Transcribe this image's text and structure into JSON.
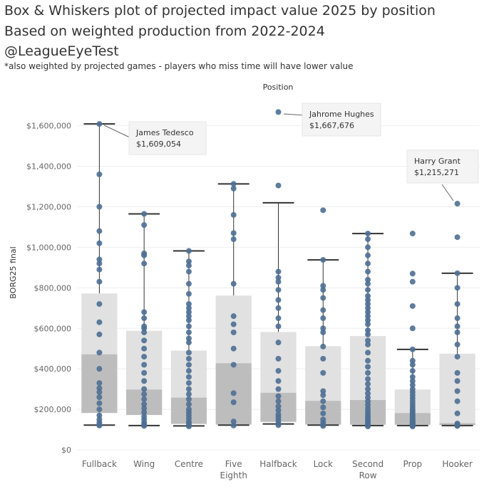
{
  "title": {
    "line1": "Box & Whiskers plot of projected impact value 2025  by position",
    "line2": "Based on weighted production from 2022-2024",
    "line3": "@LeagueEyeTest",
    "note": "*also weighted by projected games - players who miss time will have lower value"
  },
  "chart_data": {
    "type": "box",
    "column_header": "Position",
    "ylabel": "BORG25 final",
    "ylim": [
      0,
      1750000
    ],
    "yticks": [
      0,
      200000,
      400000,
      600000,
      800000,
      1000000,
      1200000,
      1400000,
      1600000
    ],
    "ytick_labels": [
      "$0",
      "$200,000",
      "$400,000",
      "$600,000",
      "$800,000",
      "$1,000,000",
      "$1,200,000",
      "$1,400,000",
      "$1,600,000"
    ],
    "categories": [
      {
        "name": "Fullback",
        "label_lines": [
          "Fullback"
        ],
        "whisker_low": 122000,
        "q1": 182000,
        "median": 472000,
        "q3": 772000,
        "whisker_high": 1609054,
        "points": [
          120000,
          125000,
          135000,
          150000,
          170000,
          200000,
          230000,
          260000,
          285000,
          305000,
          330000,
          400000,
          480000,
          570000,
          630000,
          720000,
          830000,
          890000,
          920000,
          940000,
          1020000,
          1080000,
          1200000,
          1360000,
          1609054
        ]
      },
      {
        "name": "Wing",
        "label_lines": [
          "Wing"
        ],
        "whisker_low": 120000,
        "q1": 172000,
        "median": 298000,
        "q3": 588000,
        "whisker_high": 1165000,
        "points": [
          118000,
          125000,
          135000,
          150000,
          165000,
          185000,
          205000,
          225000,
          250000,
          275000,
          300000,
          340000,
          380000,
          420000,
          460000,
          500000,
          540000,
          580000,
          600000,
          610000,
          650000,
          680000,
          920000,
          960000,
          970000,
          1110000,
          1165000
        ]
      },
      {
        "name": "Centre",
        "label_lines": [
          "Centre"
        ],
        "whisker_low": 118000,
        "q1": 128000,
        "median": 258000,
        "q3": 490000,
        "whisker_high": 982000,
        "points": [
          116000,
          122000,
          130000,
          140000,
          155000,
          170000,
          185000,
          200000,
          225000,
          250000,
          275000,
          300000,
          330000,
          360000,
          390000,
          420000,
          450000,
          480000,
          530000,
          550000,
          580000,
          610000,
          640000,
          660000,
          680000,
          700000,
          720000,
          770000,
          820000,
          880000,
          910000,
          930000,
          982000
        ]
      },
      {
        "name": "Five Eighth",
        "label_lines": [
          "Five",
          "Eighth"
        ],
        "whisker_low": 122000,
        "q1": 125000,
        "median": 428000,
        "q3": 762000,
        "whisker_high": 1313000,
        "points": [
          120000,
          140000,
          235000,
          280000,
          420000,
          500000,
          580000,
          620000,
          660000,
          820000,
          1040000,
          1070000,
          1160000,
          1290000,
          1313000
        ]
      },
      {
        "name": "Halfback",
        "label_lines": [
          "Halfback"
        ],
        "whisker_low": 128000,
        "q1": 138000,
        "median": 282000,
        "q3": 582000,
        "whisker_high": 1220000,
        "points": [
          122000,
          130000,
          145000,
          160000,
          175000,
          195000,
          215000,
          240000,
          265000,
          300000,
          340000,
          390000,
          450000,
          530000,
          610000,
          650000,
          700000,
          740000,
          790000,
          830000,
          850000,
          880000,
          1305000,
          1667676
        ]
      },
      {
        "name": "Lock",
        "label_lines": [
          "Lock"
        ],
        "whisker_low": 122000,
        "q1": 125000,
        "median": 242000,
        "q3": 512000,
        "whisker_high": 938000,
        "points": [
          118000,
          122000,
          135000,
          150000,
          180000,
          210000,
          240000,
          270000,
          290000,
          380000,
          450000,
          510000,
          580000,
          600000,
          650000,
          690000,
          750000,
          790000,
          810000,
          938000,
          1183000
        ]
      },
      {
        "name": "Second Row",
        "label_lines": [
          "Second",
          "Row"
        ],
        "whisker_low": 120000,
        "q1": 124000,
        "median": 246000,
        "q3": 562000,
        "whisker_high": 1068000,
        "points": [
          116000,
          120000,
          126000,
          133000,
          142000,
          152000,
          163000,
          176000,
          190000,
          205000,
          222000,
          240000,
          258000,
          278000,
          300000,
          325000,
          350000,
          380000,
          410000,
          440000,
          480000,
          520000,
          540000,
          570000,
          590000,
          620000,
          640000,
          660000,
          680000,
          700000,
          720000,
          740000,
          760000,
          790000,
          820000,
          840000,
          880000,
          920000,
          960000,
          1000000,
          1040000,
          1068000
        ]
      },
      {
        "name": "Prop",
        "label_lines": [
          "Prop"
        ],
        "whisker_low": 120000,
        "q1": 124000,
        "median": 182000,
        "q3": 298000,
        "whisker_high": 496000,
        "points": [
          116000,
          118000,
          120000,
          122000,
          124000,
          126000,
          128000,
          131000,
          134000,
          138000,
          142000,
          147000,
          152000,
          158000,
          165000,
          172000,
          180000,
          190000,
          200000,
          212000,
          225000,
          240000,
          255000,
          270000,
          285000,
          300000,
          320000,
          340000,
          360000,
          390000,
          420000,
          440000,
          496000,
          600000,
          710000,
          830000,
          870000,
          1068000
        ]
      },
      {
        "name": "Hooker",
        "label_lines": [
          "Hooker"
        ],
        "whisker_low": 120000,
        "q1": 122000,
        "median": 132000,
        "q3": 475000,
        "whisker_high": 872000,
        "points": [
          118000,
          120000,
          122000,
          124000,
          130000,
          180000,
          240000,
          290000,
          340000,
          380000,
          460000,
          520000,
          580000,
          610000,
          650000,
          720000,
          800000,
          872000,
          1050000,
          1215271
        ]
      }
    ],
    "annotations": [
      {
        "category": "Fullback",
        "name": "James Tedesco",
        "value_label": "$1,609,054",
        "value": 1609054
      },
      {
        "category": "Halfback",
        "name": "Jahrome Hughes",
        "value_label": "$1,667,676",
        "value": 1667676
      },
      {
        "category": "Hooker",
        "name": "Harry Grant",
        "value_label": "$1,215,271",
        "value": 1215271
      }
    ],
    "colors": {
      "point": "#4e6f94",
      "box_upper": "#e1e1e1",
      "box_lower": "#bdbdbd",
      "whisker": "#333333",
      "grid": "#eeeeee",
      "label_bg": "#f4f4f4",
      "axis_text": "#666666"
    }
  }
}
